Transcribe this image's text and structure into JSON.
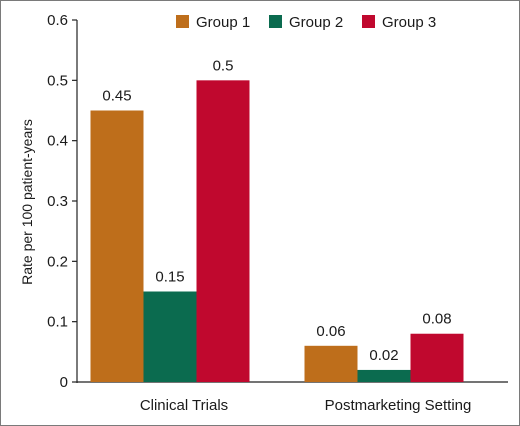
{
  "chart_data": {
    "type": "bar",
    "title": "",
    "xlabel": "",
    "ylabel": "Rate per 100 patient-years",
    "ylim": [
      0,
      0.6
    ],
    "yticks": [
      0,
      0.1,
      0.2,
      0.3,
      0.4,
      0.5,
      0.6
    ],
    "ytick_labels": [
      "0",
      "0.1",
      "0.2",
      "0.3",
      "0.4",
      "0.5",
      "0.6"
    ],
    "categories": [
      "Clinical Trials",
      "Postmarketing Setting"
    ],
    "series": [
      {
        "name": "Group 1",
        "color": "#BE6E1B",
        "values": [
          0.45,
          0.06
        ],
        "labels": [
          "0.45",
          "0.06"
        ]
      },
      {
        "name": "Group 2",
        "color": "#0B6B4F",
        "values": [
          0.15,
          0.02
        ],
        "labels": [
          "0.15",
          "0.02"
        ]
      },
      {
        "name": "Group 3",
        "color": "#C0082E",
        "values": [
          0.5,
          0.08
        ],
        "labels": [
          "0.5",
          "0.08"
        ]
      }
    ],
    "legend_position": "top",
    "grid": false
  }
}
